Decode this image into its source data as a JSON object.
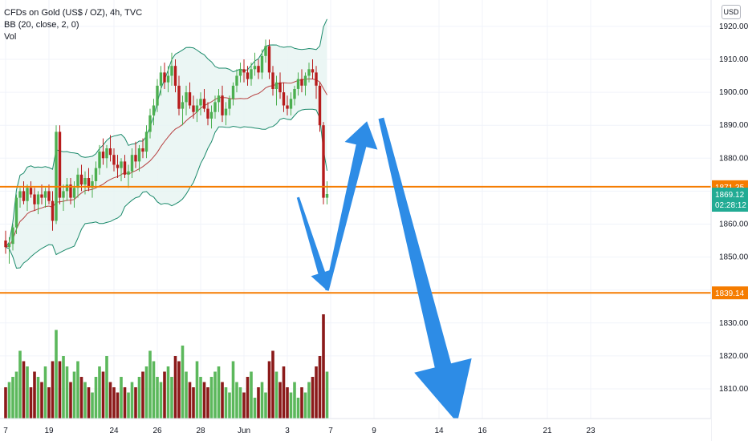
{
  "legend": {
    "symbol": "CFDs on Gold (US$ / OZ), 4h, TVC",
    "bb": "BB (20, close, 2, 0)",
    "vol": "Vol"
  },
  "currency_button": "USD",
  "chart_data": {
    "type": "candlestick",
    "y_axis": {
      "min": 1801,
      "max": 1928,
      "ticks": [
        1810,
        1820,
        1830,
        1840,
        1850,
        1860,
        1870,
        1880,
        1890,
        1900,
        1910,
        1920
      ],
      "tick_labels": [
        "1810.00",
        "1820.00",
        "1830.00",
        "1840.00",
        "1850.00",
        "1860.00",
        "1870.00",
        "1880.00",
        "1890.00",
        "1900.00",
        "1910.00",
        "1920.00"
      ]
    },
    "x_axis": {
      "ticks": [
        {
          "label": "7",
          "bar": 0
        },
        {
          "label": "19",
          "bar": 12
        },
        {
          "label": "24",
          "bar": 30
        },
        {
          "label": "26",
          "bar": 42
        },
        {
          "label": "28",
          "bar": 54
        },
        {
          "label": "Jun",
          "bar": 66
        },
        {
          "label": "3",
          "bar": 78
        },
        {
          "label": "7",
          "bar": 90
        },
        {
          "label": "9",
          "bar": 102
        },
        {
          "label": "14",
          "bar": 120
        },
        {
          "label": "16",
          "bar": 132
        },
        {
          "label": "21",
          "bar": 150
        },
        {
          "label": "23",
          "bar": 162
        }
      ]
    },
    "candles": [
      [
        1855.0,
        1858.0,
        1851.0,
        1853.0
      ],
      [
        1853.0,
        1856.0,
        1848.0,
        1854.0
      ],
      [
        1854.0,
        1860.0,
        1852.0,
        1859.0
      ],
      [
        1859.0,
        1869.0,
        1857.0,
        1868.0
      ],
      [
        1868.0,
        1871.0,
        1865.0,
        1870.0
      ],
      [
        1870.0,
        1873.0,
        1866.0,
        1867.0
      ],
      [
        1867.0,
        1872.0,
        1864.0,
        1871.0
      ],
      [
        1871.0,
        1873.0,
        1868.0,
        1869.0
      ],
      [
        1869.0,
        1871.0,
        1864.0,
        1866.0
      ],
      [
        1866.0,
        1870.0,
        1863.0,
        1869.0
      ],
      [
        1869.0,
        1872.0,
        1866.0,
        1868.0
      ],
      [
        1868.0,
        1871.0,
        1865.0,
        1870.0
      ],
      [
        1870.0,
        1872.0,
        1866.0,
        1867.0
      ],
      [
        1867.0,
        1870.0,
        1858.0,
        1861.0
      ],
      [
        1861.0,
        1890.0,
        1860.0,
        1888.0
      ],
      [
        1888.0,
        1890.0,
        1866.0,
        1868.0
      ],
      [
        1868.0,
        1872.0,
        1864.0,
        1870.0
      ],
      [
        1870.0,
        1874.0,
        1867.0,
        1872.0
      ],
      [
        1872.0,
        1874.0,
        1866.0,
        1868.0
      ],
      [
        1868.0,
        1873.0,
        1865.0,
        1871.0
      ],
      [
        1871.0,
        1877.0,
        1868.0,
        1875.0
      ],
      [
        1875.0,
        1878.0,
        1870.0,
        1872.0
      ],
      [
        1872.0,
        1876.0,
        1869.0,
        1874.0
      ],
      [
        1874.0,
        1877.0,
        1870.0,
        1871.0
      ],
      [
        1871.0,
        1875.0,
        1868.0,
        1873.0
      ],
      [
        1873.0,
        1879.0,
        1871.0,
        1877.0
      ],
      [
        1877.0,
        1884.0,
        1875.0,
        1882.0
      ],
      [
        1882.0,
        1886.0,
        1878.0,
        1880.0
      ],
      [
        1880.0,
        1884.0,
        1877.0,
        1883.0
      ],
      [
        1883.0,
        1887.0,
        1879.0,
        1881.0
      ],
      [
        1881.0,
        1883.0,
        1876.0,
        1878.0
      ],
      [
        1878.0,
        1881.0,
        1874.0,
        1877.0
      ],
      [
        1877.0,
        1880.0,
        1873.0,
        1879.0
      ],
      [
        1879.0,
        1881.0,
        1874.0,
        1875.0
      ],
      [
        1875.0,
        1878.0,
        1871.0,
        1876.0
      ],
      [
        1876.0,
        1883.0,
        1874.0,
        1881.0
      ],
      [
        1881.0,
        1885.0,
        1877.0,
        1879.0
      ],
      [
        1879.0,
        1884.0,
        1876.0,
        1883.0
      ],
      [
        1883.0,
        1886.0,
        1880.0,
        1882.0
      ],
      [
        1882.0,
        1890.0,
        1880.0,
        1888.0
      ],
      [
        1888.0,
        1895.0,
        1886.0,
        1893.0
      ],
      [
        1893.0,
        1898.0,
        1890.0,
        1896.0
      ],
      [
        1896.0,
        1904.0,
        1894.0,
        1902.0
      ],
      [
        1902.0,
        1908.0,
        1899.0,
        1906.0
      ],
      [
        1906.0,
        1909.0,
        1901.0,
        1903.0
      ],
      [
        1903.0,
        1908.0,
        1900.0,
        1905.0
      ],
      [
        1905.0,
        1912.0,
        1902.0,
        1908.0
      ],
      [
        1908.0,
        1910.0,
        1900.0,
        1902.0
      ],
      [
        1902.0,
        1905.0,
        1893.0,
        1895.0
      ],
      [
        1895.0,
        1899.0,
        1890.0,
        1897.0
      ],
      [
        1897.0,
        1902.0,
        1893.0,
        1900.0
      ],
      [
        1900.0,
        1903.0,
        1895.0,
        1896.0
      ],
      [
        1896.0,
        1899.0,
        1892.0,
        1894.0
      ],
      [
        1894.0,
        1898.0,
        1891.0,
        1896.0
      ],
      [
        1896.0,
        1900.0,
        1893.0,
        1898.0
      ],
      [
        1898.0,
        1901.0,
        1894.0,
        1895.0
      ],
      [
        1895.0,
        1897.0,
        1890.0,
        1892.0
      ],
      [
        1892.0,
        1896.0,
        1889.0,
        1894.0
      ],
      [
        1894.0,
        1899.0,
        1892.0,
        1897.0
      ],
      [
        1897.0,
        1901.0,
        1894.0,
        1899.0
      ],
      [
        1899.0,
        1902.0,
        1891.0,
        1893.0
      ],
      [
        1893.0,
        1897.0,
        1890.0,
        1895.0
      ],
      [
        1895.0,
        1899.0,
        1893.0,
        1898.0
      ],
      [
        1898.0,
        1903.0,
        1896.0,
        1902.0
      ],
      [
        1902.0,
        1907.0,
        1900.0,
        1905.0
      ],
      [
        1905.0,
        1909.0,
        1903.0,
        1907.0
      ],
      [
        1907.0,
        1910.0,
        1903.0,
        1906.0
      ],
      [
        1906.0,
        1908.0,
        1902.0,
        1904.0
      ],
      [
        1904.0,
        1909.0,
        1902.0,
        1907.0
      ],
      [
        1907.0,
        1912.0,
        1905.0,
        1908.0
      ],
      [
        1908.0,
        1910.0,
        1904.0,
        1906.0
      ],
      [
        1906.0,
        1913.0,
        1904.0,
        1911.0
      ],
      [
        1911.0,
        1916.0,
        1909.0,
        1914.0
      ],
      [
        1914.0,
        1916.0,
        1904.0,
        1906.0
      ],
      [
        1906.0,
        1908.0,
        1899.0,
        1901.0
      ],
      [
        1901.0,
        1905.0,
        1896.0,
        1903.0
      ],
      [
        1903.0,
        1906.0,
        1898.0,
        1900.0
      ],
      [
        1900.0,
        1903.0,
        1894.0,
        1896.0
      ],
      [
        1896.0,
        1899.0,
        1893.0,
        1895.0
      ],
      [
        1895.0,
        1900.0,
        1893.0,
        1898.0
      ],
      [
        1898.0,
        1902.0,
        1896.0,
        1901.0
      ],
      [
        1901.0,
        1906.0,
        1899.0,
        1904.0
      ],
      [
        1904.0,
        1907.0,
        1900.0,
        1902.0
      ],
      [
        1902.0,
        1906.0,
        1899.0,
        1905.0
      ],
      [
        1905.0,
        1909.0,
        1903.0,
        1907.0
      ],
      [
        1907.0,
        1910.0,
        1904.0,
        1906.0
      ],
      [
        1906.0,
        1908.0,
        1898.0,
        1902.0
      ],
      [
        1902.0,
        1903.0,
        1888.0,
        1890.0
      ],
      [
        1890.0,
        1891.0,
        1866.0,
        1868.0
      ],
      [
        1868.0,
        1873.0,
        1866.0,
        1869.12
      ]
    ],
    "volumes": [
      0.3,
      0.35,
      0.4,
      0.45,
      0.65,
      0.55,
      0.5,
      0.3,
      0.45,
      0.4,
      0.35,
      0.5,
      0.3,
      0.55,
      0.85,
      0.55,
      0.6,
      0.5,
      0.35,
      0.45,
      0.55,
      0.4,
      0.35,
      0.3,
      0.25,
      0.4,
      0.5,
      0.45,
      0.6,
      0.35,
      0.3,
      0.25,
      0.4,
      0.3,
      0.25,
      0.35,
      0.3,
      0.4,
      0.45,
      0.5,
      0.65,
      0.55,
      0.4,
      0.35,
      0.45,
      0.5,
      0.4,
      0.6,
      0.55,
      0.7,
      0.45,
      0.35,
      0.3,
      0.55,
      0.4,
      0.35,
      0.3,
      0.4,
      0.45,
      0.5,
      0.35,
      0.3,
      0.25,
      0.55,
      0.35,
      0.3,
      0.25,
      0.4,
      0.45,
      0.2,
      0.3,
      0.35,
      0.25,
      0.55,
      0.65,
      0.45,
      0.35,
      0.5,
      0.3,
      0.25,
      0.35,
      0.2,
      0.3,
      0.25,
      0.35,
      0.4,
      0.5,
      0.6,
      1.0,
      0.45
    ],
    "horizontal_lines": [
      {
        "price": 1871.35,
        "label": "1871.35",
        "color": "#f57c00"
      },
      {
        "price": 1839.14,
        "label": "1839.14",
        "color": "#f57c00"
      }
    ],
    "last_price": {
      "label": "1869.12",
      "countdown": "02:28:12",
      "color": "#22ab94"
    },
    "arrows_path": [
      {
        "bar": 81,
        "price": 1868
      },
      {
        "bar": 89,
        "price": 1840
      },
      {
        "bar": 100,
        "price": 1891
      },
      {
        "bar": 104,
        "price": 1892
      },
      {
        "bar": 125,
        "price": 1800
      }
    ],
    "colors": {
      "up": "#4caf50",
      "down": "#b71c1c",
      "vol_up": "#5cb85c",
      "vol_down": "#8b1a1a",
      "bb_band": "#1b8a6b",
      "bb_basis": "#b74242",
      "bb_fill": "#e6f4f1",
      "arrow": "#2d8ce6"
    }
  }
}
